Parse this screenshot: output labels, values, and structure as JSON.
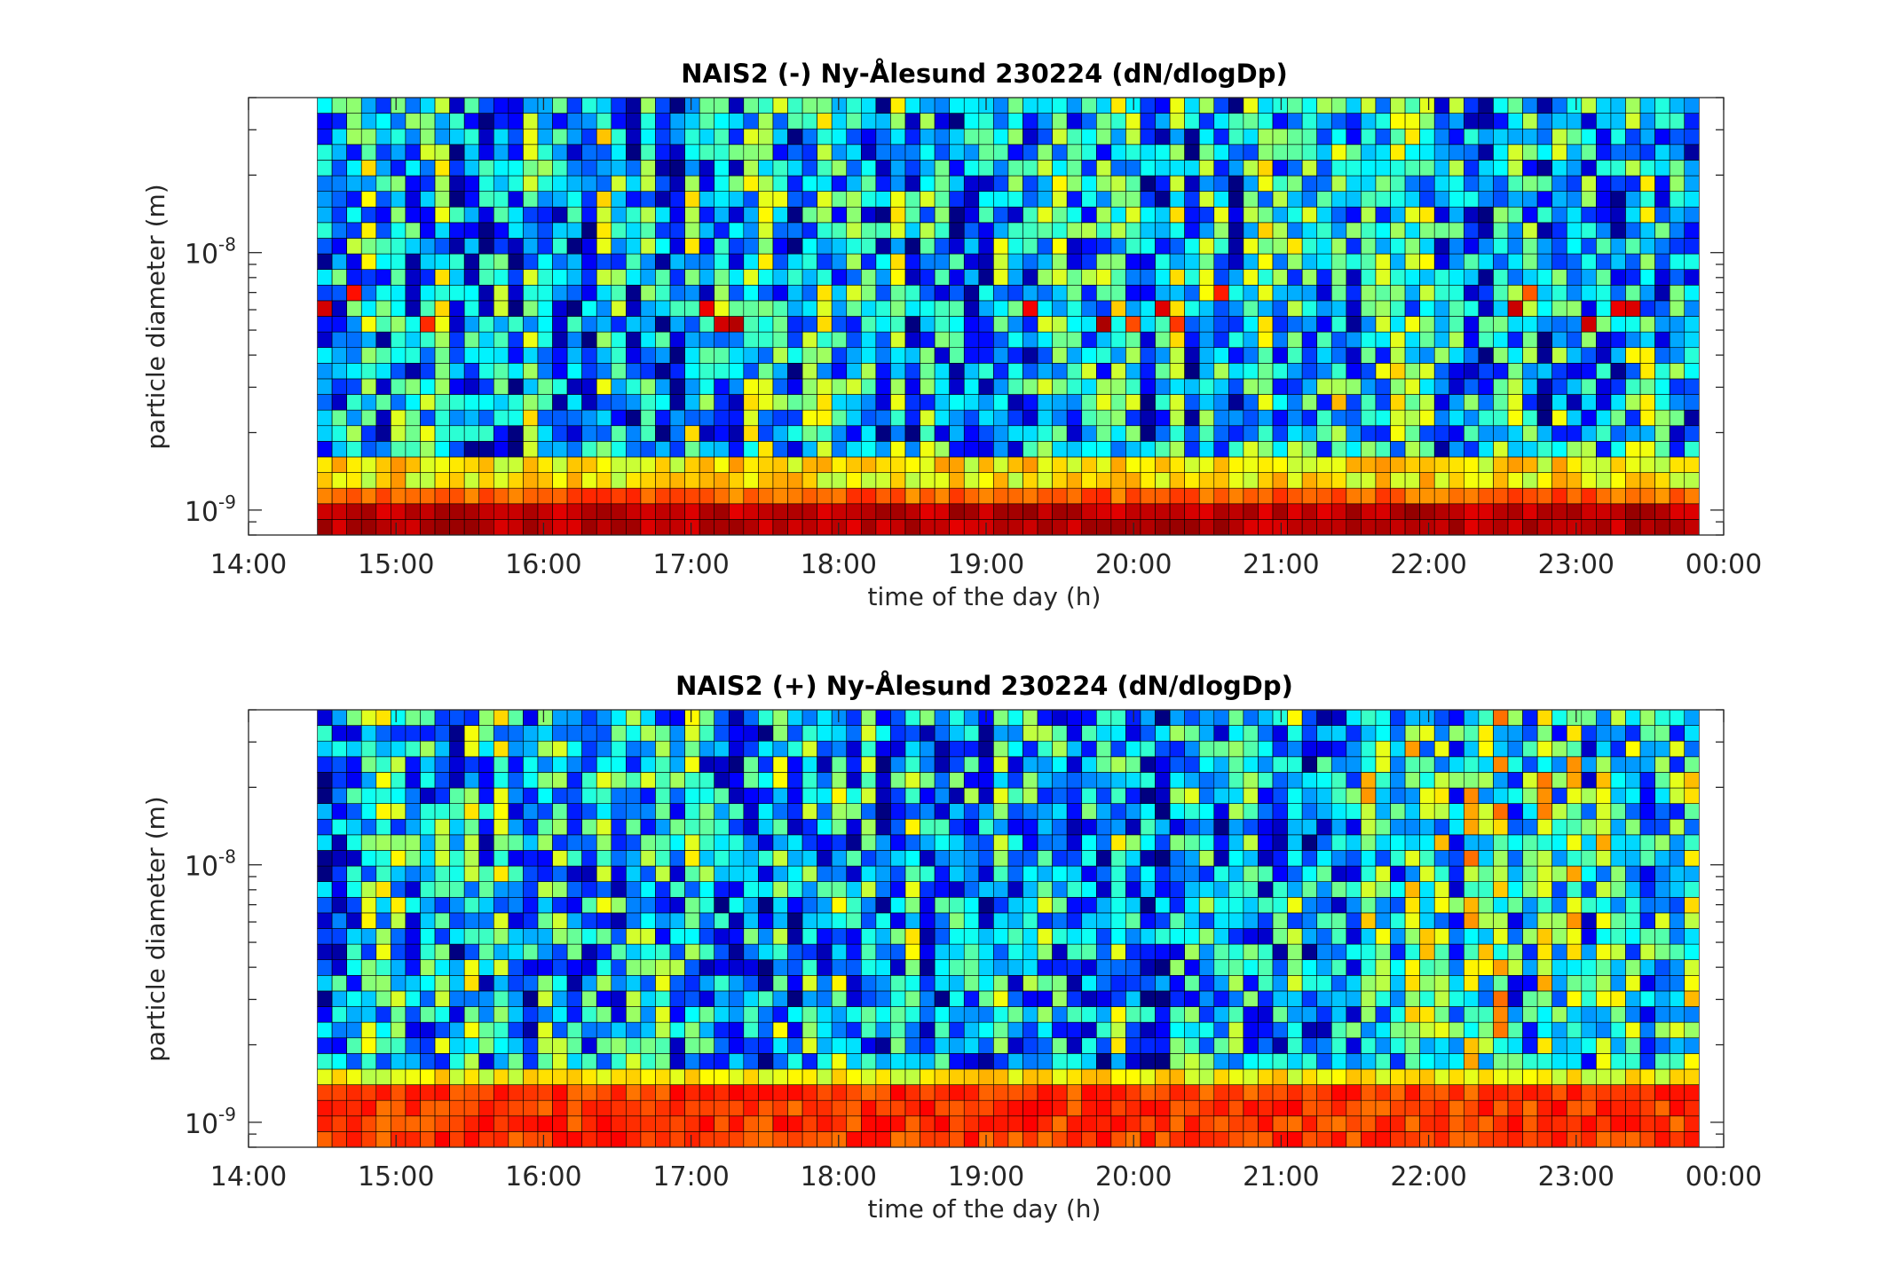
{
  "chart_data": [
    {
      "type": "heatmap",
      "title": "NAIS2 (-) Ny-Ålesund 230224 (dN/dlogDp)",
      "xlabel": "time of the day (h)",
      "ylabel": "particle diameter (m)",
      "xlim": [
        "14:00",
        "00:00"
      ],
      "ylim": [
        8e-10,
        4e-08
      ],
      "yscale": "log",
      "xticks": [
        "14:00",
        "15:00",
        "16:00",
        "17:00",
        "18:00",
        "19:00",
        "20:00",
        "21:00",
        "22:00",
        "23:00",
        "00:00"
      ],
      "yticks": [
        {
          "base": "10",
          "exp": "-9"
        },
        {
          "base": "10",
          "exp": "-8"
        }
      ],
      "data_start": "14:28",
      "data_end": "23:50",
      "colormap": "jet",
      "grid": false,
      "color_scale_note": "no colorbar shown",
      "summary": "Row of high concentration (red) in the smallest size bins below about 1.2e-9 m across the whole period; isolated orange/red cells near 7e-9 m; mostly low (blue/cyan) values above 2e-9 m."
    },
    {
      "type": "heatmap",
      "title": "NAIS2 (+) Ny-Ålesund 230224 (dN/dlogDp)",
      "xlabel": "time of the day (h)",
      "ylabel": "particle diameter (m)",
      "xlim": [
        "14:00",
        "00:00"
      ],
      "ylim": [
        8e-10,
        4e-08
      ],
      "yscale": "log",
      "xticks": [
        "14:00",
        "15:00",
        "16:00",
        "17:00",
        "18:00",
        "19:00",
        "20:00",
        "21:00",
        "22:00",
        "23:00",
        "00:00"
      ],
      "yticks": [
        {
          "base": "10",
          "exp": "-9"
        },
        {
          "base": "10",
          "exp": "-8"
        }
      ],
      "data_start": "14:28",
      "data_end": "23:50",
      "colormap": "jet",
      "grid": false,
      "color_scale_note": "no colorbar shown",
      "summary": "Band of high concentration (orange/red) below about 1.5e-9 m across the whole period; low (blue) values dominate above 2e-9 m, with greener values after about 22:00."
    }
  ]
}
